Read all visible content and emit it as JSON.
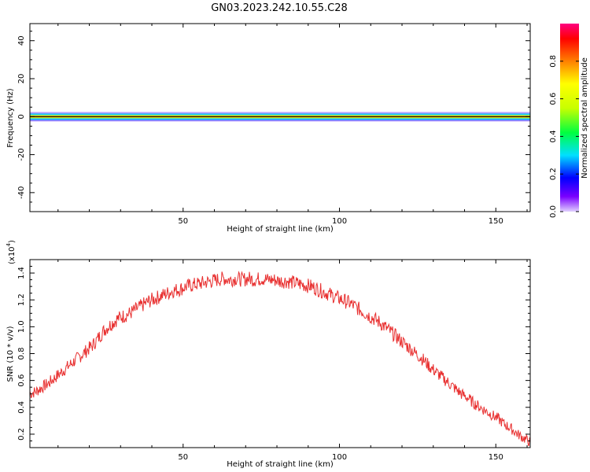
{
  "title": "GN03.2023.242.10.55.C28",
  "chart_data": [
    {
      "type": "heatmap",
      "xlabel": "Height of straight line (km)",
      "ylabel": "Frequency (Hz)",
      "xlim": [
        1,
        161
      ],
      "ylim": [
        -50,
        49
      ],
      "xticks": [
        50,
        100,
        150
      ],
      "yticks": [
        40,
        20,
        0,
        -20,
        -40
      ],
      "band_center_hz": 0,
      "horizontal_line_hz": 0,
      "colorbar": {
        "label": "Normalized spectral amplitude",
        "range": [
          0,
          1
        ],
        "ticks": [
          "0.0",
          "0.2",
          "0.4",
          "0.6",
          "0.8"
        ],
        "colormap": [
          "#e0d0ff",
          "#7a00ff",
          "#0000ff",
          "#00e0ff",
          "#00ff40",
          "#c8ff00",
          "#ffff00",
          "#ff8000",
          "#ff0000",
          "#ff0080"
        ]
      }
    },
    {
      "type": "line",
      "xlabel": "Height of straight line (km)",
      "ylabel": "SNR (10 * v/v)",
      "y_multiplier": "(x10",
      "y_multiplier_exp": "4",
      "y_multiplier_close": ")",
      "xlim": [
        1,
        161
      ],
      "ylim": [
        0.1,
        1.5
      ],
      "xticks": [
        50,
        100,
        150
      ],
      "yticks": [
        "0.2",
        "0.4",
        "0.6",
        "0.8",
        "1.0",
        "1.2",
        "1.4"
      ],
      "color": "#e83030",
      "series": [
        {
          "x": [
            1,
            3,
            5,
            7,
            9,
            11,
            13,
            15,
            17,
            19,
            21,
            23,
            25,
            27,
            29,
            31,
            33,
            35,
            37,
            39,
            41,
            43,
            45,
            47,
            49,
            51,
            53,
            55,
            57,
            59,
            61,
            63,
            65,
            67,
            69,
            71,
            73,
            75,
            77,
            79,
            81,
            83,
            85,
            87,
            89,
            91,
            93,
            95,
            97,
            99,
            101,
            103,
            105,
            107,
            109,
            111,
            113,
            115,
            117,
            119,
            121,
            123,
            125,
            127,
            129,
            131,
            133,
            135,
            137,
            139,
            141,
            143,
            145,
            147,
            149,
            151,
            153,
            155,
            157,
            159,
            161
          ],
          "y": [
            0.5,
            0.52,
            0.55,
            0.58,
            0.62,
            0.66,
            0.7,
            0.74,
            0.78,
            0.82,
            0.86,
            0.92,
            0.98,
            1.02,
            1.06,
            1.08,
            1.1,
            1.13,
            1.16,
            1.19,
            1.21,
            1.23,
            1.25,
            1.27,
            1.28,
            1.3,
            1.31,
            1.32,
            1.33,
            1.34,
            1.35,
            1.36,
            1.35,
            1.36,
            1.35,
            1.36,
            1.35,
            1.36,
            1.35,
            1.35,
            1.34,
            1.34,
            1.33,
            1.32,
            1.31,
            1.3,
            1.28,
            1.26,
            1.24,
            1.22,
            1.2,
            1.18,
            1.15,
            1.12,
            1.09,
            1.06,
            1.03,
            0.99,
            0.95,
            0.91,
            0.87,
            0.83,
            0.79,
            0.75,
            0.7,
            0.66,
            0.62,
            0.58,
            0.54,
            0.5,
            0.47,
            0.43,
            0.4,
            0.37,
            0.34,
            0.31,
            0.27,
            0.24,
            0.2,
            0.17,
            0.14
          ]
        }
      ]
    }
  ]
}
